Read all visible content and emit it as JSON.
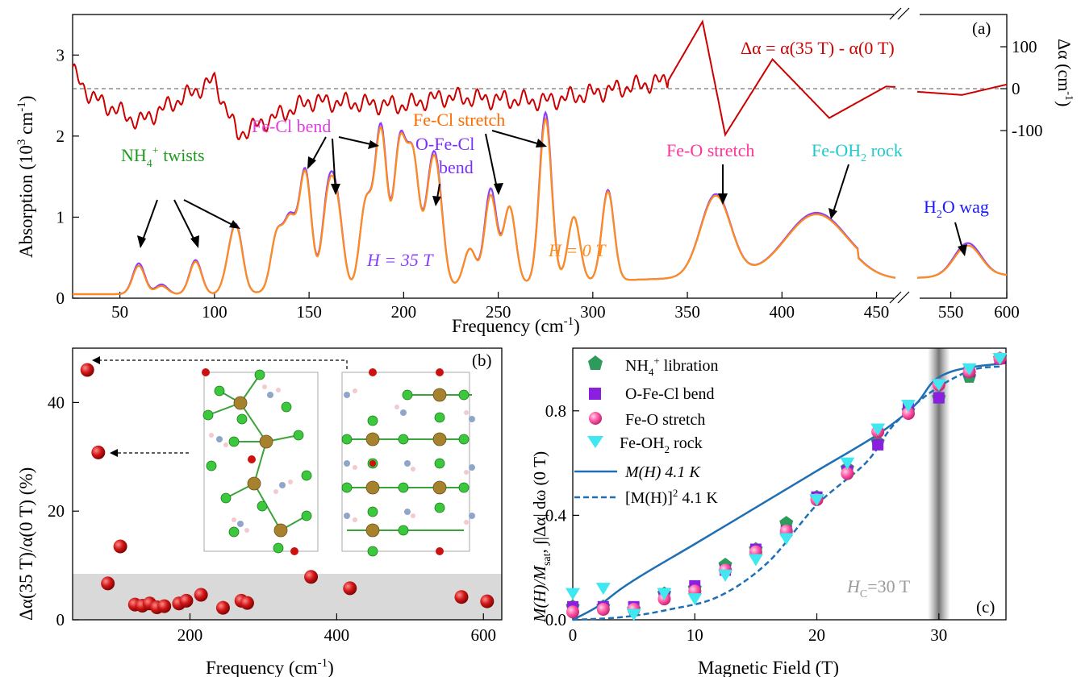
{
  "figure_labels": {
    "a": "(a)",
    "b": "(b)",
    "c": "(c)"
  },
  "colors": {
    "delta_trace": "#cc0000",
    "h35": "#8a3ffc",
    "h0": "#ff8c1a",
    "green": "#1f9a1f",
    "magenta": "#e040e0",
    "orange": "#ff6a00",
    "purple": "#7b2ff7",
    "pink": "#ff3399",
    "cyan": "#20c8c8",
    "blue": "#1a1aff",
    "grey_text": "#9a9a9a",
    "blue_line": "#1f6fb5",
    "sphere_red": "#cc1111"
  },
  "chart_data": [
    {
      "id": "a",
      "type": "line",
      "xlabel": "Frequency (cm",
      "xlabel_sup": "-1",
      "xlabel_end": ")",
      "ylabel_left": "Absorption (10",
      "ylabel_left_sup": "3",
      "ylabel_left_mid": " cm",
      "ylabel_left_sup2": "-1",
      "ylabel_left_end": ")",
      "ylabel_right": "Δα (cm",
      "ylabel_right_sup": "-1",
      "ylabel_right_end": ")",
      "x_segment1": [
        25,
        460
      ],
      "x_segment2": [
        520,
        600
      ],
      "xticks": [
        "50",
        "100",
        "150",
        "200",
        "250",
        "300",
        "350",
        "400",
        "450",
        "550",
        "600"
      ],
      "ylim_left": [
        0,
        3.5
      ],
      "yticks_left": [
        "0",
        "1",
        "2",
        "3"
      ],
      "yticks_right": [
        "100",
        "0",
        "-100"
      ],
      "delta_label": "Δα = α(35 T) - α(0 T)",
      "series": [
        {
          "name": "H = 35 T",
          "color_key": "h35",
          "peaks": [
            [
              60,
              0.38
            ],
            [
              72,
              0.12
            ],
            [
              90,
              0.42
            ],
            [
              108,
              0.3
            ],
            [
              112,
              0.7
            ],
            [
              133,
              0.7
            ],
            [
              140,
              0.85
            ],
            [
              148,
              1.48
            ],
            [
              160,
              1.08
            ],
            [
              165,
              0.9
            ],
            [
              180,
              1.05
            ],
            [
              188,
              1.98
            ],
            [
              198,
              1.75
            ],
            [
              205,
              1.55
            ],
            [
              214,
              0.98
            ],
            [
              218,
              1.05
            ],
            [
              235,
              0.45
            ],
            [
              246,
              1.18
            ],
            [
              256,
              0.95
            ],
            [
              275,
              2.1
            ],
            [
              290,
              0.8
            ],
            [
              308,
              1.12
            ],
            [
              365,
              1.02
            ],
            [
              418,
              0.75
            ],
            [
              565,
              0.41
            ]
          ]
        },
        {
          "name": "H = 0 T",
          "color_key": "h0",
          "peaks": [
            [
              60,
              0.35
            ],
            [
              72,
              0.1
            ],
            [
              90,
              0.4
            ],
            [
              108,
              0.3
            ],
            [
              112,
              0.68
            ],
            [
              133,
              0.7
            ],
            [
              140,
              0.83
            ],
            [
              148,
              1.45
            ],
            [
              160,
              1.03
            ],
            [
              165,
              0.88
            ],
            [
              180,
              1.05
            ],
            [
              188,
              1.93
            ],
            [
              198,
              1.72
            ],
            [
              205,
              1.55
            ],
            [
              214,
              0.95
            ],
            [
              218,
              1.02
            ],
            [
              235,
              0.45
            ],
            [
              246,
              1.1
            ],
            [
              256,
              0.95
            ],
            [
              275,
              2.02
            ],
            [
              290,
              0.8
            ],
            [
              308,
              1.1
            ],
            [
              365,
              1.0
            ],
            [
              418,
              0.73
            ],
            [
              565,
              0.38
            ]
          ]
        }
      ],
      "delta_series": {
        "name": "Δα",
        "points": [
          [
            25,
            40
          ],
          [
            35,
            -20
          ],
          [
            60,
            -80
          ],
          [
            100,
            20
          ],
          [
            112,
            -110
          ],
          [
            150,
            -30
          ],
          [
            200,
            -40
          ],
          [
            220,
            -20
          ],
          [
            275,
            -30
          ],
          [
            340,
            20
          ],
          [
            358,
            160
          ],
          [
            370,
            -110
          ],
          [
            395,
            70
          ],
          [
            425,
            -70
          ],
          [
            455,
            5
          ],
          [
            560,
            -15
          ],
          [
            600,
            10
          ]
        ]
      },
      "annotations": [
        {
          "text": "NH",
          "sub": "4",
          "sup": "+",
          "tail": " twists",
          "color_key": "green"
        },
        {
          "text": "Fe-Cl bend",
          "color_key": "magenta"
        },
        {
          "text": "Fe-Cl stretch",
          "color_key": "orange"
        },
        {
          "text": "O-Fe-Cl",
          "color_key": "purple"
        },
        {
          "text": "bend",
          "color_key": "purple"
        },
        {
          "text": "Fe-O stretch",
          "color_key": "pink"
        },
        {
          "text": "Fe-OH",
          "sub": "2",
          "tail": " rock",
          "color_key": "cyan"
        },
        {
          "text": "H",
          "sub": "2",
          "tail": "O wag",
          "color_key": "blue"
        },
        {
          "text": "H = 35 T",
          "color_key": "h35"
        },
        {
          "text": "H = 0 T",
          "color_key": "h0"
        }
      ]
    },
    {
      "id": "b",
      "type": "scatter",
      "xlabel": "Frequency (cm",
      "xlabel_sup": "-1",
      "xlabel_end": ")",
      "ylabel": "Δα(35 T)/α(0 T) (%)",
      "xlim": [
        40,
        625
      ],
      "ylim": [
        0,
        50
      ],
      "xticks": [
        "200",
        "400",
        "600"
      ],
      "yticks": [
        "0",
        "20",
        "40"
      ],
      "shaded_band": [
        0,
        8.5
      ],
      "points": [
        [
          60,
          46
        ],
        [
          75,
          30.8
        ],
        [
          88,
          6.7
        ],
        [
          105,
          13.5
        ],
        [
          125,
          2.8
        ],
        [
          135,
          2.6
        ],
        [
          145,
          3.0
        ],
        [
          155,
          2.3
        ],
        [
          165,
          2.5
        ],
        [
          185,
          3.0
        ],
        [
          195,
          3.5
        ],
        [
          215,
          4.6
        ],
        [
          245,
          2.2
        ],
        [
          270,
          3.5
        ],
        [
          278,
          3.1
        ],
        [
          365,
          7.9
        ],
        [
          418,
          5.8
        ],
        [
          570,
          4.2
        ],
        [
          605,
          3.4
        ]
      ]
    },
    {
      "id": "c",
      "type": "scatter",
      "xlabel": "Magnetic Field (T)",
      "ylabel_parts": [
        "M(H)/M",
        "sat",
        ", ∫|Δα| dω (0 T)"
      ],
      "xlim": [
        0,
        35.5
      ],
      "ylim": [
        0,
        1.04
      ],
      "xticks": [
        "0",
        "10",
        "20",
        "30"
      ],
      "yticks": [
        "0.0",
        "0.4",
        "0.8"
      ],
      "hc_label": "H",
      "hc_sub": "C",
      "hc_tail": "=30 T",
      "hc_value": 30,
      "legend": [
        {
          "label": "NH",
          "sub": "4",
          "sup": "+",
          "tail": " libration",
          "marker": "pentagon",
          "color": "#2e9a5c"
        },
        {
          "label": "O-Fe-Cl bend",
          "marker": "square",
          "color": "#8a1fe0"
        },
        {
          "label": "Fe-O stretch",
          "marker": "circle",
          "color": "#ff5aa8"
        },
        {
          "label": "Fe-OH",
          "sub": "2",
          "tail": " rock",
          "marker": "triangle",
          "color": "#3fe8f0"
        },
        {
          "label": "M(H) 4.1 K",
          "marker": "line",
          "color": "#1f6fb5"
        },
        {
          "label": "[M(H)]",
          "sup": "2",
          "tail": " 4.1 K",
          "marker": "dash",
          "color": "#1f6fb5"
        }
      ],
      "series": [
        {
          "name": "NH4+ libration",
          "points": [
            [
              0,
              0.05
            ],
            [
              2.5,
              0.05
            ],
            [
              5,
              0.04
            ],
            [
              7.5,
              0.1
            ],
            [
              10,
              0.12
            ],
            [
              12.5,
              0.21
            ],
            [
              15,
              0.27
            ],
            [
              17.5,
              0.37
            ],
            [
              20,
              0.47
            ],
            [
              22.5,
              0.58
            ],
            [
              25,
              0.68
            ],
            [
              27.5,
              0.8
            ],
            [
              30,
              0.85
            ],
            [
              32.5,
              0.93
            ],
            [
              35,
              1.0
            ]
          ]
        },
        {
          "name": "O-Fe-Cl bend",
          "points": [
            [
              0,
              0.05
            ],
            [
              2.5,
              0.05
            ],
            [
              5,
              0.05
            ],
            [
              7.5,
              0.1
            ],
            [
              10,
              0.13
            ],
            [
              12.5,
              0.19
            ],
            [
              15,
              0.27
            ],
            [
              17.5,
              0.34
            ],
            [
              20,
              0.47
            ],
            [
              22.5,
              0.57
            ],
            [
              25,
              0.67
            ],
            [
              27.5,
              0.82
            ],
            [
              30,
              0.85
            ],
            [
              32.5,
              0.95
            ],
            [
              35,
              1.0
            ]
          ]
        },
        {
          "name": "Fe-O stretch",
          "points": [
            [
              0,
              0.03
            ],
            [
              2.5,
              0.04
            ],
            [
              5,
              0.04
            ],
            [
              7.5,
              0.08
            ],
            [
              10,
              0.11
            ],
            [
              12.5,
              0.19
            ],
            [
              15,
              0.26
            ],
            [
              17.5,
              0.34
            ],
            [
              20,
              0.46
            ],
            [
              22.5,
              0.56
            ],
            [
              25,
              0.72
            ],
            [
              27.5,
              0.79
            ],
            [
              30,
              0.9
            ],
            [
              32.5,
              0.95
            ],
            [
              35,
              1.0
            ]
          ]
        },
        {
          "name": "Fe-OH2 rock",
          "points": [
            [
              0,
              0.1
            ],
            [
              2.5,
              0.12
            ],
            [
              5,
              0.02
            ],
            [
              7.5,
              0.1
            ],
            [
              10,
              0.08
            ],
            [
              12.5,
              0.17
            ],
            [
              15,
              0.23
            ],
            [
              17.5,
              0.31
            ],
            [
              20,
              0.46
            ],
            [
              22.5,
              0.6
            ],
            [
              25,
              0.73
            ],
            [
              27.5,
              0.82
            ],
            [
              30,
              0.9
            ],
            [
              32.5,
              0.96
            ],
            [
              35,
              1.0
            ]
          ]
        }
      ],
      "curve_MH": [
        [
          0,
          0
        ],
        [
          2,
          0.05
        ],
        [
          4,
          0.12
        ],
        [
          6,
          0.18
        ],
        [
          10,
          0.29
        ],
        [
          15,
          0.43
        ],
        [
          20,
          0.57
        ],
        [
          25,
          0.71
        ],
        [
          28,
          0.82
        ],
        [
          29.5,
          0.91
        ],
        [
          31,
          0.95
        ],
        [
          33,
          0.97
        ],
        [
          35,
          0.98
        ]
      ],
      "curve_MH2": [
        [
          0,
          0
        ],
        [
          4,
          0.01
        ],
        [
          8,
          0.04
        ],
        [
          12,
          0.09
        ],
        [
          16,
          0.22
        ],
        [
          20,
          0.44
        ],
        [
          24,
          0.6
        ],
        [
          26,
          0.73
        ],
        [
          27.5,
          0.8
        ],
        [
          29,
          0.86
        ],
        [
          31,
          0.92
        ],
        [
          33,
          0.96
        ],
        [
          35,
          0.97
        ]
      ]
    }
  ]
}
